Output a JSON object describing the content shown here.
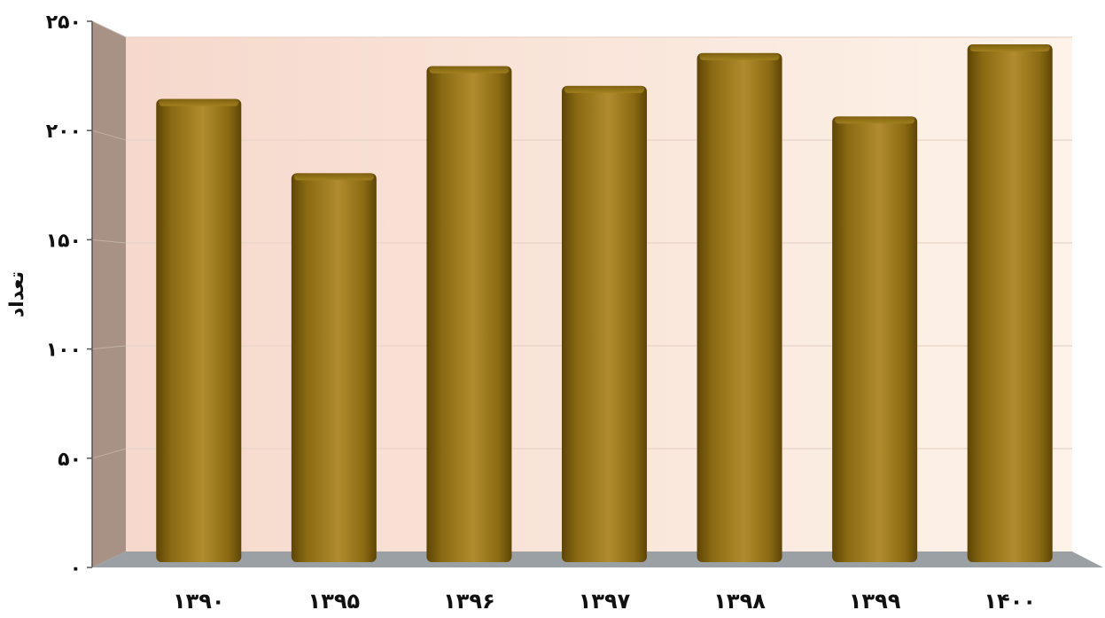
{
  "chart_data": {
    "type": "bar",
    "title": "",
    "xlabel": "",
    "ylabel": "تعداد",
    "categories": [
      "۱۳۹۰",
      "۱۳۹۵",
      "۱۳۹۶",
      "۱۳۹۷",
      "۱۳۹۸",
      "۱۳۹۹",
      "۱۴۰۰"
    ],
    "values": [
      212,
      178,
      227,
      218,
      233,
      204,
      237
    ],
    "ylim": [
      0,
      250
    ],
    "yticks": [
      0,
      50,
      100,
      150,
      200,
      250
    ],
    "ytick_labels": [
      "۰",
      "۵۰",
      "۱۰۰",
      "۱۵۰",
      "۲۰۰",
      "۲۵۰"
    ],
    "grid": true,
    "style": "3d",
    "colors": {
      "bar_light": "#b08c2e",
      "bar_mid": "#9a7618",
      "bar_dark": "#5e4506",
      "back_wall_light": "#fdf3e9",
      "back_wall_dark": "#f6d8cc",
      "side_wall": "#a89285",
      "floor": "#9aa0a4",
      "gridline": "#e8d2c8"
    }
  }
}
